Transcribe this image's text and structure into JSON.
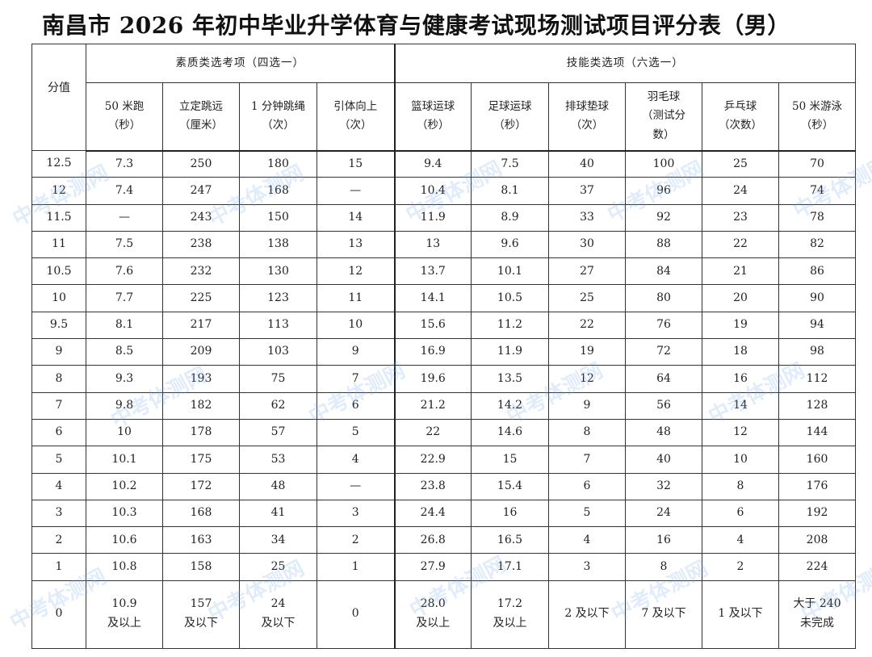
{
  "title": "南昌市 2026 年初中毕业升学体育与健康考试现场测试项目评分表（男）",
  "watermark": "中考体测网",
  "headers": {
    "score": "分值",
    "group_quality": "素质类选考项（四选一）",
    "group_skill": "技能类选项（六选一）",
    "columns": [
      [
        "50 米跑",
        "（秒）"
      ],
      [
        "立定跳远",
        "（厘米）"
      ],
      [
        "1 分钟跳绳",
        "（次）"
      ],
      [
        "引体向上",
        "（次）"
      ],
      [
        "篮球运球",
        "（秒）"
      ],
      [
        "足球运球",
        "（秒）"
      ],
      [
        "排球垫球",
        "（次）"
      ],
      [
        "羽毛球",
        "（测试分",
        "数）"
      ],
      [
        "乒乓球",
        "（次数）"
      ],
      [
        "50 米游泳",
        "（秒）"
      ]
    ]
  },
  "rows": [
    [
      "12.5",
      "7.3",
      "250",
      "180",
      "15",
      "9.4",
      "7.5",
      "40",
      "100",
      "25",
      "70"
    ],
    [
      "12",
      "7.4",
      "247",
      "168",
      "—",
      "10.4",
      "8.1",
      "37",
      "96",
      "24",
      "74"
    ],
    [
      "11.5",
      "—",
      "243",
      "150",
      "14",
      "11.9",
      "8.9",
      "33",
      "92",
      "23",
      "78"
    ],
    [
      "11",
      "7.5",
      "238",
      "138",
      "13",
      "13",
      "9.6",
      "30",
      "88",
      "22",
      "82"
    ],
    [
      "10.5",
      "7.6",
      "232",
      "130",
      "12",
      "13.7",
      "10.1",
      "27",
      "84",
      "21",
      "86"
    ],
    [
      "10",
      "7.7",
      "225",
      "123",
      "11",
      "14.1",
      "10.5",
      "25",
      "80",
      "20",
      "90"
    ],
    [
      "9.5",
      "8.1",
      "217",
      "113",
      "10",
      "15.6",
      "11.2",
      "22",
      "76",
      "19",
      "94"
    ],
    [
      "9",
      "8.5",
      "209",
      "103",
      "9",
      "16.9",
      "11.9",
      "19",
      "72",
      "18",
      "98"
    ],
    [
      "8",
      "9.3",
      "193",
      "75",
      "7",
      "19.6",
      "13.5",
      "12",
      "64",
      "16",
      "112"
    ],
    [
      "7",
      "9.8",
      "182",
      "62",
      "6",
      "21.2",
      "14.2",
      "9",
      "56",
      "14",
      "128"
    ],
    [
      "6",
      "10",
      "178",
      "57",
      "5",
      "22",
      "14.6",
      "8",
      "48",
      "12",
      "144"
    ],
    [
      "5",
      "10.1",
      "175",
      "53",
      "4",
      "22.9",
      "15",
      "7",
      "40",
      "10",
      "160"
    ],
    [
      "4",
      "10.2",
      "172",
      "48",
      "—",
      "23.8",
      "15.4",
      "6",
      "32",
      "8",
      "176"
    ],
    [
      "3",
      "10.3",
      "168",
      "41",
      "3",
      "24.4",
      "16",
      "5",
      "24",
      "6",
      "192"
    ],
    [
      "2",
      "10.6",
      "163",
      "34",
      "2",
      "26.8",
      "16.5",
      "4",
      "16",
      "4",
      "208"
    ],
    [
      "1",
      "10.8",
      "158",
      "25",
      "1",
      "27.9",
      "17.1",
      "3",
      "8",
      "2",
      "224"
    ]
  ],
  "zero_row": [
    [
      "0"
    ],
    [
      "10.9",
      "及以上"
    ],
    [
      "157",
      "及以下"
    ],
    [
      "24",
      "及以下"
    ],
    [
      "0"
    ],
    [
      "28.0",
      "及以上"
    ],
    [
      "17.2",
      "及以上"
    ],
    [
      "2 及以下"
    ],
    [
      "7 及以下"
    ],
    [
      "1 及以下"
    ],
    [
      "大于 240",
      "未完成"
    ]
  ]
}
